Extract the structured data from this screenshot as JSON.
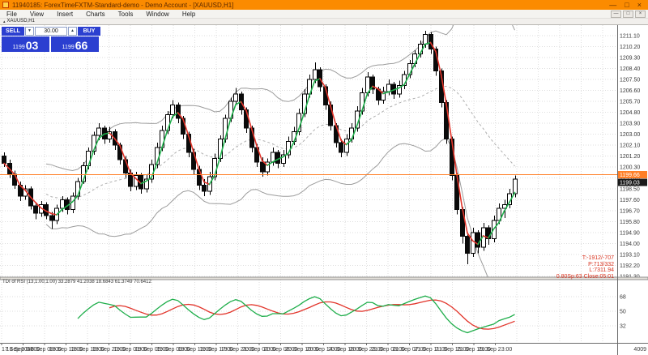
{
  "window": {
    "title": "11940185: ForexTimeFXTM-Standard-demo - Demo Account - [XAUUSD,H1]",
    "buttons": {
      "minimize": "—",
      "restore": "□",
      "close": "×"
    }
  },
  "child_buttons": {
    "minimize": "—",
    "restore": "□",
    "close": "×"
  },
  "menu": {
    "items": [
      "File",
      "View",
      "Insert",
      "Charts",
      "Tools",
      "Window",
      "Help"
    ]
  },
  "chart_tab": {
    "bullet": "▴",
    "label": "XAUUSD,H1"
  },
  "trade_panel": {
    "sell_label": "SELL",
    "buy_label": "BUY",
    "volume": "30.00",
    "down_arrow": "▼",
    "up_arrow": "▲",
    "bid_prefix": "1199",
    "bid_main": "03",
    "ask_prefix": "1199",
    "ask_main": "66"
  },
  "annotation": {
    "lines": [
      "T:-1912/-707",
      "P:713/332",
      "L:7311.94",
      "0.80Sp:63 Close:05:01"
    ]
  },
  "indicator_label": "TDI of RSI (13,1.00,1.00) 33.2879 41.2038 18.6843 61.3749 70.6412",
  "chart_data": {
    "type": "candlestick",
    "symbol": "XAUUSD",
    "timeframe": "H1",
    "bid": 1199.03,
    "ask": 1199.66,
    "ask_line_color": "#ff7f27",
    "corner_label": "4009",
    "price_axis": {
      "top_price": 1211.1,
      "step": 0.9,
      "labels": [
        "1211.10",
        "1210.20",
        "1209.30",
        "1208.40",
        "1207.50",
        "1206.60",
        "1205.70",
        "1204.80",
        "1203.90",
        "1203.00",
        "1202.10",
        "1201.20",
        "1200.30",
        "1199.40",
        "1198.50",
        "1197.60",
        "1196.70",
        "1195.80",
        "1194.90",
        "1194.00",
        "1193.10",
        "1192.20",
        "1191.30"
      ]
    },
    "time_labels": [
      "17 Sep 2018",
      "18 Sep 04:00",
      "18 Sep 08:00",
      "18 Sep 13:00",
      "18 Sep 16:00",
      "18 Sep 20:00",
      "19 Sep 01:00",
      "19 Sep 05:00",
      "19 Sep 09:00",
      "19 Sep 13:00",
      "19 Sep 17:00",
      "19 Sep 21:00",
      "20 Sep 02:00",
      "20 Sep 06:00",
      "20 Sep 10:00",
      "20 Sep 14:00",
      "20 Sep 18:00",
      "20 Sep 23:00",
      "21 Sep 03:00",
      "21 Sep 07:00",
      "21 Sep 11:00",
      "21 Sep 15:00",
      "21 Sep 19:00",
      "21 Sep 23:00"
    ],
    "ohlc_columns": [
      "open",
      "high",
      "low",
      "close"
    ],
    "candles": [
      [
        1201.2,
        1201.5,
        1200.3,
        1200.6
      ],
      [
        1200.6,
        1200.9,
        1199.4,
        1199.7
      ],
      [
        1199.7,
        1200.0,
        1198.5,
        1198.8
      ],
      [
        1198.8,
        1199.1,
        1197.5,
        1197.9
      ],
      [
        1197.9,
        1198.8,
        1197.6,
        1198.5
      ],
      [
        1198.5,
        1198.7,
        1196.8,
        1197.1
      ],
      [
        1197.1,
        1197.4,
        1196.0,
        1196.5
      ],
      [
        1196.5,
        1197.5,
        1196.2,
        1197.2
      ],
      [
        1197.2,
        1197.4,
        1196.0,
        1196.3
      ],
      [
        1196.3,
        1196.6,
        1195.2,
        1195.9
      ],
      [
        1195.9,
        1197.2,
        1195.6,
        1196.9
      ],
      [
        1196.9,
        1197.9,
        1196.6,
        1197.6
      ],
      [
        1197.6,
        1197.8,
        1196.4,
        1196.8
      ],
      [
        1196.8,
        1198.2,
        1196.5,
        1197.9
      ],
      [
        1197.9,
        1199.4,
        1197.6,
        1199.1
      ],
      [
        1199.1,
        1200.7,
        1198.9,
        1200.4
      ],
      [
        1200.4,
        1201.9,
        1200.1,
        1201.6
      ],
      [
        1201.6,
        1203.2,
        1201.3,
        1202.9
      ],
      [
        1202.9,
        1203.9,
        1202.5,
        1203.5
      ],
      [
        1203.5,
        1203.7,
        1202.2,
        1202.6
      ],
      [
        1202.6,
        1203.6,
        1202.3,
        1203.2
      ],
      [
        1203.2,
        1203.4,
        1201.7,
        1202.1
      ],
      [
        1202.1,
        1202.3,
        1200.5,
        1200.9
      ],
      [
        1200.9,
        1201.2,
        1199.4,
        1199.8
      ],
      [
        1199.8,
        1200.1,
        1198.3,
        1198.7
      ],
      [
        1198.7,
        1199.9,
        1198.4,
        1199.6
      ],
      [
        1199.6,
        1199.8,
        1198.1,
        1198.5
      ],
      [
        1198.5,
        1199.7,
        1198.2,
        1199.3
      ],
      [
        1199.3,
        1200.9,
        1199.0,
        1200.5
      ],
      [
        1200.5,
        1202.3,
        1200.2,
        1201.9
      ],
      [
        1201.9,
        1203.7,
        1201.6,
        1203.3
      ],
      [
        1203.3,
        1204.9,
        1203.0,
        1204.6
      ],
      [
        1204.6,
        1205.8,
        1204.3,
        1205.4
      ],
      [
        1205.4,
        1205.6,
        1203.9,
        1204.3
      ],
      [
        1204.3,
        1204.5,
        1202.6,
        1203.0
      ],
      [
        1203.0,
        1203.2,
        1201.1,
        1201.5
      ],
      [
        1201.5,
        1201.8,
        1199.7,
        1200.1
      ],
      [
        1200.1,
        1200.4,
        1198.4,
        1198.8
      ],
      [
        1198.8,
        1199.3,
        1197.9,
        1198.3
      ],
      [
        1198.3,
        1199.9,
        1198.0,
        1199.5
      ],
      [
        1199.5,
        1201.4,
        1199.2,
        1201.0
      ],
      [
        1201.0,
        1202.9,
        1200.7,
        1202.6
      ],
      [
        1202.6,
        1204.6,
        1202.3,
        1204.3
      ],
      [
        1204.3,
        1206.0,
        1204.0,
        1205.7
      ],
      [
        1205.7,
        1206.8,
        1205.4,
        1206.3
      ],
      [
        1206.3,
        1206.5,
        1204.6,
        1205.0
      ],
      [
        1205.0,
        1205.2,
        1203.1,
        1203.5
      ],
      [
        1203.5,
        1203.7,
        1201.5,
        1201.9
      ],
      [
        1201.9,
        1202.2,
        1200.3,
        1200.7
      ],
      [
        1200.7,
        1201.1,
        1199.5,
        1199.9
      ],
      [
        1199.9,
        1201.0,
        1199.6,
        1200.7
      ],
      [
        1200.7,
        1201.9,
        1200.4,
        1201.5
      ],
      [
        1201.5,
        1201.7,
        1200.2,
        1200.6
      ],
      [
        1200.6,
        1201.7,
        1200.3,
        1201.3
      ],
      [
        1201.3,
        1202.8,
        1201.0,
        1202.4
      ],
      [
        1202.4,
        1203.6,
        1202.1,
        1203.2
      ],
      [
        1203.2,
        1205.1,
        1202.9,
        1204.7
      ],
      [
        1204.7,
        1206.7,
        1204.4,
        1206.3
      ],
      [
        1206.3,
        1207.9,
        1206.0,
        1207.5
      ],
      [
        1207.5,
        1208.9,
        1207.2,
        1208.3
      ],
      [
        1208.3,
        1208.5,
        1206.5,
        1206.9
      ],
      [
        1206.9,
        1207.1,
        1205.0,
        1205.4
      ],
      [
        1205.4,
        1205.7,
        1203.3,
        1203.7
      ],
      [
        1203.7,
        1203.9,
        1201.9,
        1202.3
      ],
      [
        1202.3,
        1202.6,
        1201.1,
        1201.5
      ],
      [
        1201.5,
        1203.0,
        1201.2,
        1202.6
      ],
      [
        1202.6,
        1203.9,
        1202.3,
        1203.5
      ],
      [
        1203.5,
        1205.3,
        1203.2,
        1204.9
      ],
      [
        1204.9,
        1206.8,
        1204.6,
        1206.4
      ],
      [
        1206.4,
        1208.1,
        1206.1,
        1207.7
      ],
      [
        1207.7,
        1207.9,
        1206.3,
        1206.7
      ],
      [
        1206.7,
        1206.9,
        1205.4,
        1205.8
      ],
      [
        1205.8,
        1206.9,
        1205.5,
        1206.5
      ],
      [
        1206.5,
        1207.5,
        1206.2,
        1207.1
      ],
      [
        1207.1,
        1207.3,
        1205.9,
        1206.3
      ],
      [
        1206.3,
        1207.4,
        1206.0,
        1207.0
      ],
      [
        1207.0,
        1208.2,
        1206.7,
        1207.9
      ],
      [
        1207.9,
        1209.1,
        1207.6,
        1208.8
      ],
      [
        1208.8,
        1209.9,
        1208.5,
        1209.6
      ],
      [
        1209.6,
        1210.7,
        1209.3,
        1210.4
      ],
      [
        1210.4,
        1211.5,
        1210.1,
        1211.2
      ],
      [
        1211.2,
        1211.4,
        1209.6,
        1210.0
      ],
      [
        1210.0,
        1210.2,
        1207.8,
        1208.2
      ],
      [
        1208.2,
        1208.4,
        1205.2,
        1205.6
      ],
      [
        1205.6,
        1205.8,
        1202.2,
        1202.6
      ],
      [
        1202.6,
        1202.8,
        1199.2,
        1199.6
      ],
      [
        1199.6,
        1199.8,
        1196.4,
        1196.8
      ],
      [
        1196.8,
        1197.0,
        1194.0,
        1194.6
      ],
      [
        1194.6,
        1194.9,
        1192.3,
        1193.2
      ],
      [
        1193.2,
        1195.3,
        1192.9,
        1194.9
      ],
      [
        1194.9,
        1195.1,
        1193.2,
        1193.7
      ],
      [
        1193.7,
        1195.7,
        1193.4,
        1195.3
      ],
      [
        1195.3,
        1195.5,
        1193.9,
        1194.4
      ],
      [
        1194.4,
        1196.3,
        1194.1,
        1195.9
      ],
      [
        1195.9,
        1197.3,
        1195.6,
        1196.9
      ],
      [
        1196.9,
        1197.6,
        1196.1,
        1197.2
      ],
      [
        1197.2,
        1198.5,
        1196.9,
        1198.1
      ],
      [
        1198.1,
        1199.6,
        1197.8,
        1199.3
      ]
    ],
    "overlays": {
      "ma": {
        "type": "colored-ma",
        "period": 3,
        "up_color": "#1fae4b",
        "down_color": "#e2342a"
      },
      "bands": {
        "period": 20,
        "deviation": 1.8,
        "color": "#9c9c9c"
      }
    },
    "indicator": {
      "name": "TDI",
      "levels": [
        68,
        50,
        32
      ],
      "green_color": "#1fae4b",
      "red_color": "#e2342a"
    }
  }
}
